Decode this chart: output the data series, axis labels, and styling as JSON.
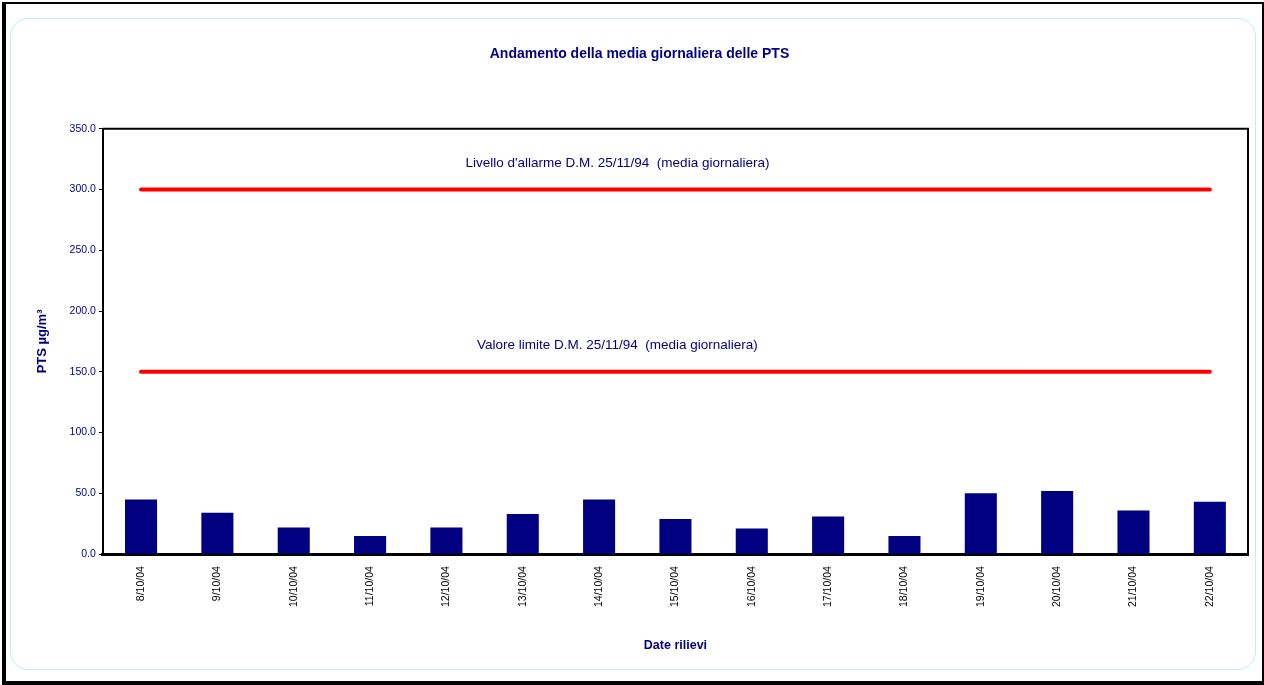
{
  "chart_data": {
    "type": "bar",
    "title": "Andamento della media giornaliera delle PTS",
    "xlabel": "Date rilievi",
    "ylabel": "PTS µg/m³",
    "categories": [
      "8/10/04",
      "9/10/04",
      "10/10/04",
      "11/10/04",
      "12/10/04",
      "13/10/04",
      "14/10/04",
      "15/10/04",
      "16/10/04",
      "17/10/04",
      "18/10/04",
      "19/10/04",
      "20/10/04",
      "21/10/04",
      "22/10/04"
    ],
    "values": [
      45,
      34,
      22,
      15,
      22,
      33,
      45,
      29,
      21,
      31,
      15,
      50,
      52,
      36,
      43
    ],
    "color": "#000080",
    "ylim": [
      0,
      350
    ],
    "yticks": [
      {
        "value": 0,
        "label": "0.0"
      },
      {
        "value": 50,
        "label": "50.0"
      },
      {
        "value": 100,
        "label": "100.0"
      },
      {
        "value": 150,
        "label": "150.0"
      },
      {
        "value": 200,
        "label": "200.0"
      },
      {
        "value": 250,
        "label": "250.0"
      },
      {
        "value": 300,
        "label": "300.0"
      },
      {
        "value": 350,
        "label": "350.0"
      }
    ],
    "grid": false,
    "legend": false,
    "ref_lines": [
      {
        "axis": "y",
        "value": 300,
        "label": "Livello d'allarme D.M. 25/11/94  (media giornaliera)",
        "color": "#ff0000"
      },
      {
        "axis": "y",
        "value": 150,
        "label": "Valore limite D.M. 25/11/94  (media giornaliera)",
        "color": "#ff0000"
      }
    ]
  }
}
